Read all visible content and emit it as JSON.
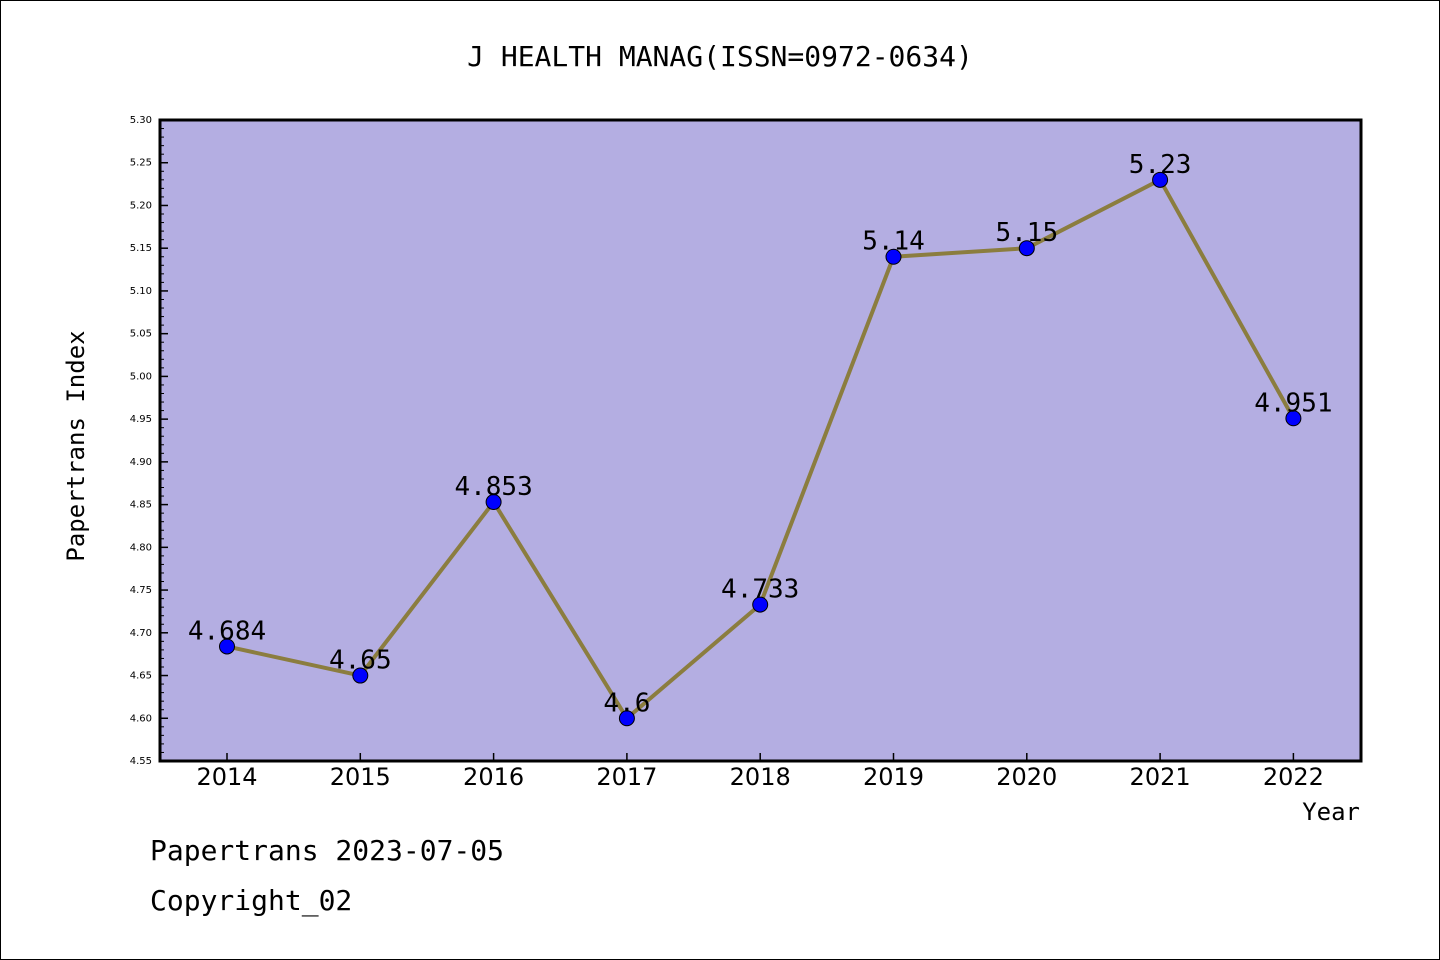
{
  "chart_data": {
    "type": "line",
    "title": "J HEALTH MANAG(ISSN=0972-0634)",
    "xlabel": "Year",
    "ylabel": "Papertrans Index",
    "categories": [
      "2014",
      "2015",
      "2016",
      "2017",
      "2018",
      "2019",
      "2020",
      "2021",
      "2022"
    ],
    "series": [
      {
        "values": [
          4.684,
          4.65,
          4.853,
          4.6,
          4.733,
          5.14,
          5.15,
          5.23,
          4.951
        ],
        "labels": [
          "4.684",
          "4.65",
          "4.853",
          "4.6",
          "4.733",
          "5.14",
          "5.15",
          "5.23",
          "4.951"
        ]
      }
    ],
    "ylim": [
      4.55,
      5.3
    ],
    "yticks": [
      "4.55",
      "4.60",
      "4.65",
      "4.70",
      "4.75",
      "4.80",
      "4.85",
      "4.90",
      "4.95",
      "5.00",
      "5.05",
      "5.10",
      "5.15",
      "5.20",
      "5.25",
      "5.30"
    ],
    "grid": false,
    "colors": {
      "plot_background": "#b4aee2",
      "line": "#8b7d3f",
      "marker": "#0000ff"
    }
  },
  "footer": {
    "date_text": "Papertrans 2023-07-05",
    "copyright_text": "Copyright_02"
  }
}
